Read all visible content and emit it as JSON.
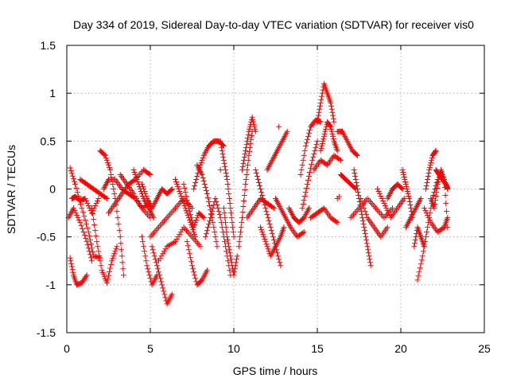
{
  "chart_data": {
    "type": "scatter",
    "title": "Day 334 of 2019, Sidereal Day-to-day VTEC variation (SDTVAR) for receiver vis0",
    "xlabel": "GPS time / hours",
    "ylabel": "SDTVAR / TECUs",
    "xlim": [
      0,
      25
    ],
    "ylim": [
      -1.5,
      1.5
    ],
    "xticks": [
      "0",
      "5",
      "10",
      "15",
      "20",
      "25"
    ],
    "yticks": [
      "-1.5",
      "-1",
      "-0.5",
      "0",
      "0.5",
      "1",
      "1.5"
    ],
    "grid": true,
    "marker": "plus",
    "series_color": "#ff0000",
    "tracks": [
      {
        "name": "arc-01",
        "x": [
          0.2,
          0.4,
          0.6,
          0.9,
          1.2
        ],
        "y": [
          -0.72,
          -0.9,
          -1.0,
          -0.98,
          -0.9
        ]
      },
      {
        "name": "arc-02",
        "x": [
          0.3,
          0.5,
          0.8,
          1.1,
          1.5,
          1.9
        ],
        "y": [
          -0.1,
          -0.08,
          -0.12,
          -0.1,
          -0.25,
          -0.1
        ]
      },
      {
        "name": "arc-03",
        "x": [
          0.2,
          0.5,
          0.9,
          1.3,
          1.6,
          2.0
        ],
        "y": [
          0.22,
          0.05,
          -0.2,
          -0.45,
          -0.7,
          -0.72
        ]
      },
      {
        "name": "arc-04",
        "x": [
          0.1,
          0.4,
          0.8,
          1.2,
          1.5
        ],
        "y": [
          -0.3,
          -0.2,
          -0.35,
          -0.55,
          -0.75
        ]
      },
      {
        "name": "arc-05",
        "x": [
          0.8,
          1.2,
          1.6,
          2.0,
          2.4
        ],
        "y": [
          0.1,
          0.05,
          0.0,
          -0.05,
          -0.1
        ]
      },
      {
        "name": "arc-06",
        "x": [
          1.5,
          1.8,
          2.1,
          2.4,
          2.7,
          3.0
        ],
        "y": [
          -0.2,
          -0.55,
          -0.85,
          -0.98,
          -0.75,
          -0.6
        ]
      },
      {
        "name": "arc-07",
        "x": [
          2.0,
          2.3,
          2.6,
          2.9,
          3.2,
          3.4
        ],
        "y": [
          0.4,
          0.35,
          0.2,
          -0.1,
          -0.5,
          -0.9
        ]
      },
      {
        "name": "arc-08",
        "x": [
          2.2,
          2.5,
          2.9,
          3.3,
          3.7,
          4.1,
          4.5,
          5.0
        ],
        "y": [
          0.0,
          0.1,
          0.1,
          0.0,
          -0.05,
          -0.1,
          -0.2,
          -0.15
        ]
      },
      {
        "name": "arc-09",
        "x": [
          2.5,
          2.9,
          3.3,
          3.7,
          4.1,
          4.6,
          5.0
        ],
        "y": [
          -0.25,
          -0.15,
          -0.05,
          0.05,
          0.1,
          0.2,
          0.15
        ]
      },
      {
        "name": "arc-10",
        "x": [
          3.2,
          3.6,
          4.0,
          4.5,
          5.0
        ],
        "y": [
          0.15,
          0.05,
          -0.05,
          -0.2,
          -0.3
        ]
      },
      {
        "name": "arc-11",
        "x": [
          4.0,
          4.3,
          4.6,
          4.9,
          5.2
        ],
        "y": [
          0.2,
          0.05,
          -0.1,
          -0.2,
          -0.3
        ]
      },
      {
        "name": "arc-12",
        "x": [
          4.5,
          4.8,
          5.1,
          5.4,
          5.7,
          6.0,
          6.3
        ],
        "y": [
          0.05,
          -0.1,
          -0.2,
          -0.1,
          0.0,
          -0.05,
          0.0
        ]
      },
      {
        "name": "arc-13",
        "x": [
          4.5,
          4.8,
          5.1,
          5.4
        ],
        "y": [
          -0.5,
          -0.8,
          -1.0,
          -0.9
        ]
      },
      {
        "name": "arc-14",
        "x": [
          5.1,
          5.4,
          5.7,
          6.0,
          6.3
        ],
        "y": [
          -0.6,
          -0.8,
          -1.0,
          -1.2,
          -1.1
        ]
      },
      {
        "name": "arc-15",
        "x": [
          5.0,
          5.5,
          6.0,
          6.5,
          7.0,
          7.5
        ],
        "y": [
          -0.5,
          -0.4,
          -0.3,
          -0.2,
          -0.1,
          -0.2
        ]
      },
      {
        "name": "arc-16",
        "x": [
          5.5,
          6.0,
          6.5,
          7.0,
          7.5,
          8.0
        ],
        "y": [
          -0.75,
          -0.6,
          -0.55,
          -0.4,
          -0.5,
          -0.6
        ]
      },
      {
        "name": "arc-17",
        "x": [
          6.5,
          6.8,
          7.1,
          7.4,
          7.7
        ],
        "y": [
          0.1,
          -0.05,
          -0.2,
          -0.35,
          -0.5
        ]
      },
      {
        "name": "arc-18",
        "x": [
          7.0,
          7.3,
          7.6,
          7.9,
          8.2
        ],
        "y": [
          0.05,
          -0.2,
          -0.4,
          -0.25,
          -0.3
        ]
      },
      {
        "name": "arc-19",
        "x": [
          7.2,
          7.5,
          7.8,
          8.1,
          8.4
        ],
        "y": [
          -0.55,
          -0.8,
          -1.0,
          -0.95,
          -0.85
        ]
      },
      {
        "name": "arc-20",
        "x": [
          7.6,
          7.9,
          8.2,
          8.5,
          8.8,
          9.1,
          9.4
        ],
        "y": [
          0.0,
          0.2,
          0.35,
          0.45,
          0.5,
          0.5,
          0.45
        ]
      },
      {
        "name": "arc-21",
        "x": [
          7.8,
          8.1,
          8.4,
          8.7,
          9.0
        ],
        "y": [
          0.25,
          0.15,
          -0.05,
          -0.3,
          -0.6
        ]
      },
      {
        "name": "arc-22",
        "x": [
          8.3,
          8.6,
          8.9,
          9.2,
          9.5,
          9.8
        ],
        "y": [
          -0.5,
          -0.3,
          -0.1,
          -0.3,
          -0.6,
          -0.9
        ]
      },
      {
        "name": "arc-23",
        "x": [
          9.2,
          9.4,
          9.6,
          9.8,
          10.0
        ],
        "y": [
          0.5,
          0.3,
          0.1,
          -0.2,
          -0.5
        ]
      },
      {
        "name": "arc-24",
        "x": [
          9.4,
          9.6,
          9.8,
          10.0,
          10.2
        ],
        "y": [
          -0.2,
          -0.5,
          -0.7,
          -0.9,
          -0.7
        ]
      },
      {
        "name": "arc-25",
        "x": [
          10.3,
          10.5,
          10.7,
          10.9,
          11.1
        ],
        "y": [
          -0.6,
          -0.3,
          0.05,
          0.35,
          0.6
        ]
      },
      {
        "name": "arc-26",
        "x": [
          10.5,
          10.7,
          10.9,
          11.1,
          11.3
        ],
        "y": [
          0.2,
          0.4,
          0.6,
          0.75,
          0.6
        ]
      },
      {
        "name": "arc-27",
        "x": [
          10.8,
          11.2,
          11.6,
          12.0,
          12.4
        ],
        "y": [
          -0.3,
          -0.2,
          -0.1,
          -0.15,
          -0.2
        ]
      },
      {
        "name": "arc-28",
        "x": [
          11.3,
          11.6,
          11.9,
          12.2,
          12.5,
          12.8
        ],
        "y": [
          0.2,
          0.0,
          -0.2,
          -0.4,
          -0.6,
          -0.8
        ]
      },
      {
        "name": "arc-29",
        "x": [
          11.6,
          11.9,
          12.2,
          12.5,
          12.8,
          13.0
        ],
        "y": [
          -0.4,
          -0.55,
          -0.7,
          -0.6,
          -0.5,
          -0.4
        ]
      },
      {
        "name": "arc-30",
        "x": [
          12.0,
          12.3,
          12.6,
          12.9,
          13.2
        ],
        "y": [
          0.2,
          0.3,
          0.4,
          0.5,
          0.6
        ]
      },
      {
        "name": "arc-31",
        "x": [
          12.5,
          12.8,
          13.1,
          13.4,
          13.8,
          14.2
        ],
        "y": [
          -0.1,
          -0.2,
          -0.3,
          -0.4,
          -0.5,
          -0.45
        ]
      },
      {
        "name": "arc-32",
        "x": [
          13.3,
          13.6,
          13.9,
          14.2,
          14.5
        ],
        "y": [
          -0.2,
          -0.3,
          -0.35,
          -0.3,
          -0.2
        ]
      },
      {
        "name": "arc-33",
        "x": [
          14.0,
          14.3,
          14.6,
          14.9,
          15.2
        ],
        "y": [
          0.15,
          0.45,
          0.65,
          0.72,
          0.7
        ]
      },
      {
        "name": "arc-34",
        "x": [
          14.1,
          14.4,
          14.7,
          15.0
        ],
        "y": [
          -0.2,
          0.05,
          0.3,
          0.5
        ]
      },
      {
        "name": "arc-35",
        "x": [
          15.0,
          15.2,
          15.4,
          15.6,
          15.8,
          16.0
        ],
        "y": [
          0.7,
          0.9,
          1.1,
          1.0,
          0.9,
          0.7
        ]
      },
      {
        "name": "arc-36",
        "x": [
          15.2,
          15.4,
          15.6,
          15.8,
          16.0,
          16.2
        ],
        "y": [
          0.4,
          0.55,
          0.7,
          0.65,
          0.5,
          0.4
        ]
      },
      {
        "name": "arc-37",
        "x": [
          14.8,
          15.2,
          15.6,
          16.0,
          16.4
        ],
        "y": [
          0.2,
          0.3,
          0.25,
          0.35,
          0.3
        ]
      },
      {
        "name": "arc-38",
        "x": [
          14.6,
          15.0,
          15.4,
          15.8,
          16.2
        ],
        "y": [
          -0.3,
          -0.25,
          -0.2,
          -0.3,
          -0.35
        ]
      },
      {
        "name": "arc-39",
        "x": [
          16.2,
          16.5,
          16.8,
          17.1,
          17.4
        ],
        "y": [
          0.6,
          0.6,
          0.5,
          0.4,
          0.35
        ]
      },
      {
        "name": "arc-40",
        "x": [
          16.4,
          16.7,
          17.0,
          17.3
        ],
        "y": [
          0.15,
          0.1,
          0.05,
          0.0
        ]
      },
      {
        "name": "arc-41",
        "x": [
          17.2,
          17.4,
          17.6,
          17.8,
          18.0,
          18.2
        ],
        "y": [
          0.2,
          0.0,
          -0.2,
          -0.4,
          -0.6,
          -0.8
        ]
      },
      {
        "name": "arc-42",
        "x": [
          17.0,
          17.5,
          18.0,
          18.5,
          19.0,
          19.5
        ],
        "y": [
          -0.3,
          -0.2,
          -0.1,
          -0.2,
          -0.3,
          -0.2
        ]
      },
      {
        "name": "arc-43",
        "x": [
          17.6,
          18.0,
          18.4,
          18.8,
          19.2
        ],
        "y": [
          -0.1,
          -0.3,
          -0.4,
          -0.5,
          -0.4
        ]
      },
      {
        "name": "arc-44",
        "x": [
          18.6,
          19.0,
          19.4,
          19.8,
          20.2
        ],
        "y": [
          0.0,
          -0.15,
          -0.3,
          -0.2,
          -0.1
        ]
      },
      {
        "name": "arc-45",
        "x": [
          19.2,
          19.5,
          19.8,
          20.1
        ],
        "y": [
          -0.1,
          0.0,
          0.05,
          0.0
        ]
      },
      {
        "name": "arc-46",
        "x": [
          20.1,
          20.3,
          20.5,
          20.7
        ],
        "y": [
          0.2,
          0.05,
          -0.1,
          -0.3
        ]
      },
      {
        "name": "arc-47",
        "x": [
          20.3,
          20.6,
          20.9,
          21.2
        ],
        "y": [
          -0.4,
          -0.3,
          -0.2,
          -0.1
        ]
      },
      {
        "name": "arc-48",
        "x": [
          20.8,
          21.0,
          21.2,
          21.4
        ],
        "y": [
          -0.6,
          -0.4,
          -0.5,
          -0.6
        ]
      },
      {
        "name": "arc-49",
        "x": [
          21.0,
          21.3,
          21.6,
          21.9,
          22.2
        ],
        "y": [
          -0.95,
          -0.7,
          -0.4,
          -0.1,
          0.1
        ]
      },
      {
        "name": "arc-50",
        "x": [
          21.5,
          21.7,
          21.9,
          22.1
        ],
        "y": [
          0.0,
          0.2,
          0.35,
          0.4
        ]
      },
      {
        "name": "arc-51",
        "x": [
          21.4,
          21.8,
          22.2,
          22.6,
          22.8
        ],
        "y": [
          -0.2,
          -0.35,
          -0.45,
          -0.4,
          -0.3
        ]
      },
      {
        "name": "arc-52",
        "x": [
          21.8,
          22.0,
          22.2,
          22.4,
          22.6,
          22.8
        ],
        "y": [
          -0.1,
          -0.2,
          0.05,
          0.2,
          0.1,
          -0.4
        ]
      },
      {
        "name": "arc-53",
        "x": [
          22.1,
          22.3,
          22.5,
          22.7,
          22.8
        ],
        "y": [
          0.2,
          0.15,
          0.1,
          0.05,
          0.0
        ]
      }
    ],
    "isolated_points": [
      {
        "x": 9.2,
        "y": 0.2
      },
      {
        "x": 12.7,
        "y": 0.65
      },
      {
        "x": 16.2,
        "y": -0.1
      },
      {
        "x": 16.3,
        "y": -0.08
      }
    ]
  }
}
